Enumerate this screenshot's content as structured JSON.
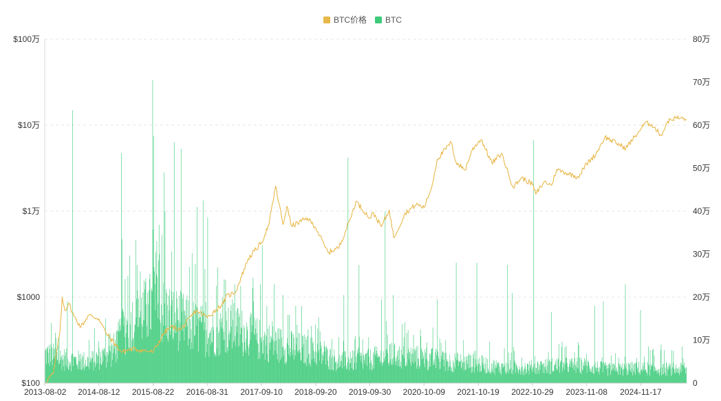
{
  "chart_data": {
    "type": "line",
    "legend": {
      "placement": "top-center",
      "items": [
        {
          "label": "BTC价格",
          "color": "#E8B84A"
        },
        {
          "label": "BTC",
          "color": "#3DCB7A"
        }
      ]
    },
    "x_ticks": [
      "2013-08-02",
      "2014-08-12",
      "2015-08-22",
      "2016-08-31",
      "2017-09-10",
      "2018-09-20",
      "2019-09-30",
      "2020-10-09",
      "2021-10-19",
      "2022-10-29",
      "2023-11-08",
      "2024-11-17"
    ],
    "x_range": [
      "2013-08-02",
      "2025-09-30"
    ],
    "left_axis": {
      "scale": "log",
      "range": [
        100,
        1000000
      ],
      "ticks": [
        {
          "value": 100,
          "label": "$100"
        },
        {
          "value": 1000,
          "label": "$1000"
        },
        {
          "value": 10000,
          "label": "$1万"
        },
        {
          "value": 100000,
          "label": "$10万"
        },
        {
          "value": 1000000,
          "label": "$100万"
        }
      ]
    },
    "right_axis": {
      "scale": "linear",
      "range": [
        0,
        800000
      ],
      "ticks": [
        {
          "value": 0,
          "label": "0"
        },
        {
          "value": 100000,
          "label": "10万"
        },
        {
          "value": 200000,
          "label": "20万"
        },
        {
          "value": 300000,
          "label": "30万"
        },
        {
          "value": 400000,
          "label": "40万"
        },
        {
          "value": 500000,
          "label": "50万"
        },
        {
          "value": 600000,
          "label": "60万"
        },
        {
          "value": 700000,
          "label": "70万"
        },
        {
          "value": 800000,
          "label": "80万"
        }
      ]
    },
    "grid": "horizontal-dashed",
    "series": [
      {
        "name": "BTC价格",
        "axis": "left",
        "color": "#E8B84A",
        "style": "line",
        "points": [
          [
            "2013-08-02",
            100
          ],
          [
            "2013-10-01",
            130
          ],
          [
            "2013-11-15",
            400
          ],
          [
            "2013-12-01",
            1000
          ],
          [
            "2013-12-20",
            700
          ],
          [
            "2014-01-15",
            850
          ],
          [
            "2014-02-20",
            600
          ],
          [
            "2014-04-10",
            450
          ],
          [
            "2014-06-01",
            620
          ],
          [
            "2014-08-12",
            560
          ],
          [
            "2014-10-01",
            380
          ],
          [
            "2015-01-15",
            230
          ],
          [
            "2015-04-01",
            250
          ],
          [
            "2015-06-15",
            240
          ],
          [
            "2015-08-22",
            230
          ],
          [
            "2015-11-05",
            380
          ],
          [
            "2015-12-20",
            450
          ],
          [
            "2016-03-01",
            420
          ],
          [
            "2016-06-15",
            700
          ],
          [
            "2016-08-31",
            580
          ],
          [
            "2016-12-20",
            850
          ],
          [
            "2017-01-05",
            1000
          ],
          [
            "2017-03-15",
            1150
          ],
          [
            "2017-06-10",
            2800
          ],
          [
            "2017-09-10",
            4300
          ],
          [
            "2017-11-01",
            7000
          ],
          [
            "2017-12-17",
            19500
          ],
          [
            "2018-02-06",
            7000
          ],
          [
            "2018-03-05",
            11400
          ],
          [
            "2018-04-06",
            6700
          ],
          [
            "2018-07-25",
            8300
          ],
          [
            "2018-09-20",
            6500
          ],
          [
            "2018-11-25",
            3800
          ],
          [
            "2018-12-15",
            3300
          ],
          [
            "2019-03-01",
            3800
          ],
          [
            "2019-05-15",
            8000
          ],
          [
            "2019-06-26",
            13000
          ],
          [
            "2019-09-30",
            8300
          ],
          [
            "2019-10-26",
            9500
          ],
          [
            "2019-12-18",
            6600
          ],
          [
            "2020-02-12",
            10300
          ],
          [
            "2020-03-13",
            4900
          ],
          [
            "2020-06-01",
            9500
          ],
          [
            "2020-08-17",
            12000
          ],
          [
            "2020-10-09",
            11000
          ],
          [
            "2020-12-01",
            19000
          ],
          [
            "2021-01-08",
            40000
          ],
          [
            "2021-04-14",
            63000
          ],
          [
            "2021-05-19",
            37000
          ],
          [
            "2021-07-20",
            30000
          ],
          [
            "2021-09-06",
            51000
          ],
          [
            "2021-10-19",
            64000
          ],
          [
            "2021-11-10",
            68000
          ],
          [
            "2022-01-22",
            36000
          ],
          [
            "2022-03-29",
            47000
          ],
          [
            "2022-06-18",
            19000
          ],
          [
            "2022-08-14",
            24500
          ],
          [
            "2022-10-29",
            20600
          ],
          [
            "2022-11-21",
            15800
          ],
          [
            "2023-01-20",
            22000
          ],
          [
            "2023-03-10",
            20000
          ],
          [
            "2023-04-14",
            30500
          ],
          [
            "2023-09-11",
            25000
          ],
          [
            "2023-11-08",
            35500
          ],
          [
            "2024-01-11",
            46000
          ],
          [
            "2024-03-14",
            73000
          ],
          [
            "2024-08-05",
            54000
          ],
          [
            "2024-11-17",
            90000
          ],
          [
            "2024-12-17",
            106000
          ],
          [
            "2025-02-01",
            102000
          ],
          [
            "2025-04-08",
            76000
          ],
          [
            "2025-05-22",
            111000
          ],
          [
            "2025-07-14",
            122000
          ],
          [
            "2025-09-30",
            118000
          ]
        ]
      },
      {
        "name": "BTC",
        "axis": "right",
        "color": "#3DCB7A",
        "style": "volume-bars",
        "baseline_profile": [
          [
            "2013-08-02",
            75000
          ],
          [
            "2014-01-01",
            60000
          ],
          [
            "2014-06-01",
            55000
          ],
          [
            "2014-11-01",
            75000
          ],
          [
            "2015-03-01",
            150000
          ],
          [
            "2015-08-22",
            200000
          ],
          [
            "2016-01-01",
            170000
          ],
          [
            "2016-08-31",
            130000
          ],
          [
            "2017-03-01",
            140000
          ],
          [
            "2017-09-10",
            110000
          ],
          [
            "2018-03-01",
            95000
          ],
          [
            "2018-09-20",
            80000
          ],
          [
            "2019-03-01",
            55000
          ],
          [
            "2019-09-30",
            60000
          ],
          [
            "2020-03-01",
            70000
          ],
          [
            "2020-10-09",
            65000
          ],
          [
            "2021-04-01",
            55000
          ],
          [
            "2021-10-19",
            50000
          ],
          [
            "2022-04-01",
            40000
          ],
          [
            "2022-10-29",
            40000
          ],
          [
            "2023-04-01",
            45000
          ],
          [
            "2023-11-08",
            45000
          ],
          [
            "2024-04-01",
            35000
          ],
          [
            "2024-11-17",
            38000
          ],
          [
            "2025-09-30",
            35000
          ]
        ],
        "spikes": [
          [
            "2013-09-15",
            140000
          ],
          [
            "2014-01-06",
            190000
          ],
          [
            "2014-02-10",
            635000
          ],
          [
            "2014-09-24",
            150000
          ],
          [
            "2014-10-28",
            115000
          ],
          [
            "2015-01-14",
            535000
          ],
          [
            "2015-01-16",
            335000
          ],
          [
            "2015-05-01",
            275000
          ],
          [
            "2015-08-19",
            705000
          ],
          [
            "2015-08-25",
            575000
          ],
          [
            "2015-09-15",
            330000
          ],
          [
            "2015-10-20",
            345000
          ],
          [
            "2015-11-04",
            490000
          ],
          [
            "2015-11-12",
            400000
          ],
          [
            "2016-01-15",
            560000
          ],
          [
            "2016-03-01",
            545000
          ],
          [
            "2016-06-20",
            410000
          ],
          [
            "2016-08-02",
            425000
          ],
          [
            "2016-09-01",
            385000
          ],
          [
            "2017-01-05",
            240000
          ],
          [
            "2017-03-10",
            230000
          ],
          [
            "2017-07-15",
            245000
          ],
          [
            "2017-09-14",
            320000
          ],
          [
            "2017-12-08",
            230000
          ],
          [
            "2018-02-06",
            205000
          ],
          [
            "2019-04-02",
            205000
          ],
          [
            "2019-05-01",
            525000
          ],
          [
            "2019-07-17",
            275000
          ],
          [
            "2019-12-18",
            195000
          ],
          [
            "2020-01-14",
            400000
          ],
          [
            "2020-03-12",
            205000
          ],
          [
            "2021-01-11",
            195000
          ],
          [
            "2021-05-19",
            280000
          ],
          [
            "2021-10-10",
            280000
          ],
          [
            "2022-05-12",
            275000
          ],
          [
            "2022-06-13",
            210000
          ],
          [
            "2022-11-09",
            565000
          ],
          [
            "2023-03-10",
            165000
          ],
          [
            "2024-01-03",
            180000
          ],
          [
            "2024-03-05",
            190000
          ],
          [
            "2024-08-05",
            230000
          ],
          [
            "2024-11-15",
            170000
          ],
          [
            "2025-01-10",
            85000
          ],
          [
            "2025-04-08",
            90000
          ],
          [
            "2025-09-01",
            85000
          ]
        ]
      }
    ]
  }
}
